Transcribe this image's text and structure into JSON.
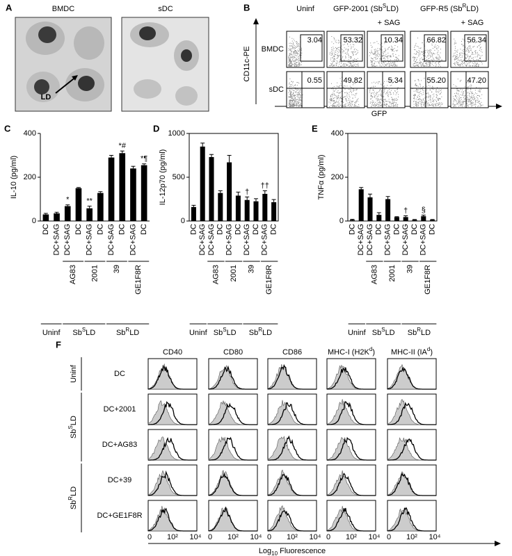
{
  "panel_a": {
    "panel": "A",
    "images": [
      {
        "title": "BMDC"
      },
      {
        "title": "sDC"
      }
    ],
    "annotation": "LD"
  },
  "panel_b": {
    "panel": "B",
    "headers": [
      "Uninf",
      {
        "base": "GFP-2001 (Sb",
        "sup": "S",
        "rest": "LD)"
      },
      {
        "base": "GFP-R5 (Sb",
        "sup": "R",
        "rest": "LD)"
      }
    ],
    "sag_labels": [
      "+ SAG",
      "+ SAG"
    ],
    "rows": [
      "BMDC",
      "sDC"
    ],
    "y_axis_label": "CD11c-PE",
    "x_axis_label": "GFP",
    "values": [
      [
        "3.04",
        "53.32",
        "10.34",
        "66.82",
        "56.34"
      ],
      [
        "0.55",
        "49.82",
        "5.34",
        "55.20",
        "47.20"
      ]
    ]
  },
  "chart_data": [
    {
      "type": "bar",
      "panel": "C",
      "y_axis_label": "IL-10 (pg/ml)",
      "frame": "axes",
      "color": "#000000",
      "categories": [
        "DC",
        "DC+SAG",
        "DC+SAG",
        "DC",
        "DC+SAG",
        "DC",
        "DC+SAG",
        "DC",
        "DC+SAG",
        "DC"
      ],
      "values": [
        30,
        35,
        68,
        150,
        58,
        128,
        290,
        310,
        240,
        255
      ],
      "errors": [
        5,
        5,
        6,
        3,
        10,
        6,
        10,
        10,
        10,
        6
      ],
      "annotations": [
        null,
        null,
        "*",
        null,
        "**",
        null,
        null,
        "*#",
        null,
        "*¶"
      ],
      "ylim": [
        0,
        400
      ],
      "yticks": [
        0,
        200,
        400
      ],
      "groups": [
        {
          "label": "AG83",
          "span": [
            2,
            3
          ]
        },
        {
          "label": "2001",
          "span": [
            4,
            5
          ]
        },
        {
          "label": "39",
          "span": [
            6,
            7
          ]
        },
        {
          "label": "GE1F8R",
          "span": [
            8,
            9
          ]
        }
      ],
      "super_groups": [
        {
          "label": "Uninf",
          "span": [
            0,
            1
          ]
        },
        {
          "label": {
            "base": "Sb",
            "sup": "S",
            "rest": "LD"
          },
          "span": [
            2,
            5
          ]
        },
        {
          "label": {
            "base": "Sb",
            "sup": "R",
            "rest": "LD"
          },
          "span": [
            6,
            9
          ]
        }
      ]
    },
    {
      "type": "bar",
      "panel": "D",
      "y_axis_label": "IL-12p70 (pg/ml)",
      "frame": "box",
      "color": "#000000",
      "categories": [
        "DC",
        "DC+SAG",
        "DC+SAG",
        "DC",
        "DC+SAG",
        "DC",
        "DC+SAG",
        "DC",
        "DC+SAG",
        "DC"
      ],
      "values": [
        160,
        850,
        730,
        320,
        670,
        290,
        240,
        225,
        310,
        215
      ],
      "errors": [
        20,
        40,
        30,
        25,
        80,
        40,
        35,
        30,
        35,
        30
      ],
      "annotations": [
        null,
        null,
        null,
        null,
        null,
        null,
        "†",
        null,
        "††",
        null
      ],
      "ylim": [
        0,
        1000
      ],
      "yticks": [
        0,
        500,
        1000
      ],
      "groups": [
        {
          "label": "AG83",
          "span": [
            2,
            3
          ]
        },
        {
          "label": "2001",
          "span": [
            4,
            5
          ]
        },
        {
          "label": "39",
          "span": [
            6,
            7
          ]
        },
        {
          "label": "GE1F8R",
          "span": [
            8,
            9
          ]
        }
      ],
      "super_groups": [
        {
          "label": "Uninf",
          "span": [
            0,
            1
          ]
        },
        {
          "label": {
            "base": "Sb",
            "sup": "S",
            "rest": "LD"
          },
          "span": [
            2,
            5
          ]
        },
        {
          "label": {
            "base": "Sb",
            "sup": "R",
            "rest": "LD"
          },
          "span": [
            6,
            9
          ]
        }
      ]
    },
    {
      "type": "bar",
      "panel": "E",
      "y_axis_label": "TNFα (pg/ml)",
      "frame": "box",
      "color": "#000000",
      "categories": [
        "DC",
        "DC+SAG",
        "DC+SAG",
        "DC",
        "DC+SAG",
        "DC",
        "DC+SAG",
        "DC",
        "DC+SAG",
        "DC"
      ],
      "values": [
        5,
        145,
        108,
        28,
        100,
        18,
        18,
        5,
        22,
        5
      ],
      "errors": [
        3,
        8,
        15,
        10,
        12,
        2,
        6,
        2,
        5,
        2
      ],
      "annotations": [
        null,
        null,
        null,
        null,
        null,
        null,
        "†",
        null,
        "§",
        null
      ],
      "ylim": [
        0,
        400
      ],
      "yticks": [
        0,
        200,
        400
      ],
      "groups": [
        {
          "label": "AG83",
          "span": [
            2,
            3
          ]
        },
        {
          "label": "2001",
          "span": [
            4,
            5
          ]
        },
        {
          "label": "39",
          "span": [
            6,
            7
          ]
        },
        {
          "label": "GE1F8R",
          "span": [
            8,
            9
          ]
        }
      ],
      "super_groups": [
        {
          "label": "Uninf",
          "span": [
            0,
            1
          ]
        },
        {
          "label": {
            "base": "Sb",
            "sup": "S",
            "rest": "LD"
          },
          "span": [
            2,
            5
          ]
        },
        {
          "label": {
            "base": "Sb",
            "sup": "R",
            "rest": "LD"
          },
          "span": [
            6,
            9
          ]
        }
      ]
    }
  ],
  "panel_f": {
    "panel": "F",
    "columns": [
      "CD40",
      "CD80",
      "CD86",
      {
        "base": "MHC-I (H2K",
        "sup": "d",
        "rest": ")"
      },
      {
        "base": "MHC-II (IA",
        "sup": "d",
        "rest": ")"
      }
    ],
    "rows": [
      "DC",
      "DC+2001",
      "DC+AG83",
      "DC+39",
      "DC+GE1F8R"
    ],
    "row_groups": [
      {
        "label": "Uninf",
        "span": [
          0,
          0
        ]
      },
      {
        "label": {
          "base": "Sb",
          "sup": "S",
          "rest": "LD"
        },
        "span": [
          1,
          2
        ]
      },
      {
        "label": {
          "base": "Sb",
          "sup": "R",
          "rest": "LD"
        },
        "span": [
          3,
          4
        ]
      }
    ],
    "x_ticks": [
      "0",
      "10²",
      "10⁴"
    ],
    "x_axis_label": {
      "base": "Log",
      "sub": "10",
      "rest": " Fluorescence"
    }
  }
}
